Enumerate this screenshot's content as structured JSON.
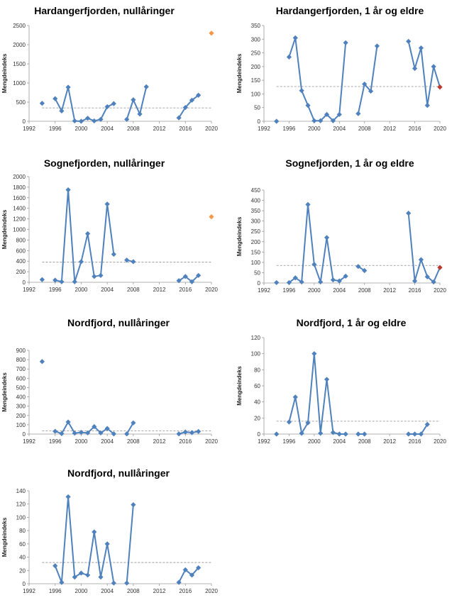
{
  "chart_data": [
    {
      "type": "line",
      "title": "Hardangerfjorden, nullåringer",
      "ylabel": "Mengdeindeks",
      "xlim": [
        1992,
        2020
      ],
      "ylim": [
        0,
        2500
      ],
      "xticks": [
        "1992",
        "1996",
        "2000",
        "2004",
        "2008",
        "2012",
        "2016",
        "2020"
      ],
      "yticks": [
        "0",
        "500",
        "1000",
        "1500",
        "2000",
        "2500"
      ],
      "reference_line": 350,
      "segments": [
        [
          [
            1994,
            470
          ]
        ],
        [
          [
            1996,
            590
          ],
          [
            1997,
            270
          ],
          [
            1998,
            890
          ],
          [
            1999,
            10
          ],
          [
            2000,
            0
          ],
          [
            2001,
            80
          ],
          [
            2002,
            10
          ],
          [
            2003,
            50
          ],
          [
            2004,
            380
          ],
          [
            2005,
            460
          ]
        ],
        [
          [
            2007,
            50
          ],
          [
            2008,
            560
          ],
          [
            2009,
            190
          ],
          [
            2010,
            900
          ]
        ],
        [
          [
            2015,
            90
          ],
          [
            2016,
            360
          ],
          [
            2017,
            550
          ],
          [
            2018,
            680
          ]
        ]
      ],
      "highlight": {
        "x": 2020,
        "y": 2300,
        "color": "#f79646"
      }
    },
    {
      "type": "line",
      "title": "Hardangerfjorden, 1 år og eldre",
      "ylabel": "Mengdeindeks",
      "xlim": [
        1992,
        2020
      ],
      "ylim": [
        0,
        350
      ],
      "xticks": [
        "1992",
        "1996",
        "2000",
        "2004",
        "2008",
        "2012",
        "2016",
        "2020"
      ],
      "yticks": [
        "0",
        "50",
        "100",
        "150",
        "200",
        "250",
        "300",
        "350"
      ],
      "reference_line": 127,
      "segments": [
        [
          [
            1994,
            0
          ]
        ],
        [
          [
            1996,
            235
          ],
          [
            1997,
            305
          ],
          [
            1998,
            112
          ],
          [
            1999,
            58
          ],
          [
            2000,
            2
          ],
          [
            2001,
            2
          ],
          [
            2002,
            25
          ],
          [
            2003,
            2
          ],
          [
            2004,
            25
          ],
          [
            2005,
            287
          ]
        ],
        [
          [
            2007,
            28
          ],
          [
            2008,
            136
          ],
          [
            2009,
            110
          ],
          [
            2010,
            275
          ]
        ],
        [
          [
            2015,
            292
          ],
          [
            2016,
            193
          ],
          [
            2017,
            268
          ],
          [
            2018,
            58
          ],
          [
            2019,
            200
          ],
          [
            2020,
            125
          ]
        ]
      ],
      "highlight": {
        "x": 2020,
        "y": 125,
        "color": "#c0392b"
      }
    },
    {
      "type": "line",
      "title": "Sognefjorden, nullåringer",
      "ylabel": "Mengdeindeks",
      "xlim": [
        1992,
        2020
      ],
      "ylim": [
        0,
        2000
      ],
      "xticks": [
        "1992",
        "1996",
        "2000",
        "2004",
        "2008",
        "2012",
        "2016",
        "2020"
      ],
      "yticks": [
        "0",
        "200",
        "400",
        "600",
        "800",
        "1000",
        "1200",
        "1400",
        "1600",
        "1800",
        "2000"
      ],
      "reference_line": 380,
      "segments": [
        [
          [
            1994,
            50
          ]
        ],
        [
          [
            1996,
            40
          ],
          [
            1997,
            10
          ],
          [
            1998,
            1750
          ],
          [
            1999,
            10
          ],
          [
            2000,
            390
          ],
          [
            2001,
            920
          ],
          [
            2002,
            110
          ],
          [
            2003,
            130
          ],
          [
            2004,
            1480
          ],
          [
            2005,
            530
          ]
        ],
        [
          [
            2007,
            420
          ],
          [
            2008,
            390
          ]
        ],
        [
          [
            2015,
            30
          ],
          [
            2016,
            110
          ],
          [
            2017,
            10
          ],
          [
            2018,
            130
          ]
        ]
      ],
      "highlight": {
        "x": 2020,
        "y": 1240,
        "color": "#f79646"
      }
    },
    {
      "type": "line",
      "title": "Sognefjorden, 1 år og eldre",
      "ylabel": "Mengdeindeks",
      "xlim": [
        1992,
        2020
      ],
      "ylim": [
        0,
        450
      ],
      "xticks": [
        "1992",
        "1996",
        "2000",
        "2004",
        "2008",
        "2012",
        "2016",
        "2020"
      ],
      "yticks": [
        "0",
        "50",
        "100",
        "150",
        "200",
        "250",
        "300",
        "350",
        "400",
        "450"
      ],
      "reference_line": 85,
      "segments": [
        [
          [
            1994,
            2
          ]
        ],
        [
          [
            1996,
            2
          ],
          [
            1997,
            25
          ],
          [
            1998,
            5
          ],
          [
            1999,
            380
          ],
          [
            2000,
            90
          ],
          [
            2001,
            5
          ],
          [
            2002,
            220
          ],
          [
            2003,
            15
          ],
          [
            2004,
            10
          ],
          [
            2005,
            33
          ]
        ],
        [
          [
            2007,
            80
          ],
          [
            2008,
            60
          ]
        ],
        [
          [
            2015,
            338
          ],
          [
            2016,
            10
          ],
          [
            2017,
            113
          ],
          [
            2018,
            30
          ],
          [
            2019,
            5
          ],
          [
            2020,
            75
          ]
        ]
      ],
      "highlight": {
        "x": 2020,
        "y": 75,
        "color": "#c0392b"
      }
    },
    {
      "type": "line",
      "title": "Nordfjord, nullåringer",
      "ylabel": "Mengdeindeks",
      "xlim": [
        1992,
        2020
      ],
      "ylim": [
        0,
        900
      ],
      "xticks": [
        "1992",
        "1996",
        "2000",
        "2004",
        "2008",
        "2012",
        "2016",
        "2020"
      ],
      "yticks": [
        "0",
        "100",
        "200",
        "300",
        "400",
        "500",
        "600",
        "700",
        "800",
        "900"
      ],
      "reference_line": 35,
      "segments": [
        [
          [
            1994,
            780
          ]
        ],
        [
          [
            1996,
            30
          ],
          [
            1997,
            5
          ],
          [
            1998,
            130
          ],
          [
            1999,
            10
          ],
          [
            2000,
            18
          ],
          [
            2001,
            12
          ],
          [
            2002,
            80
          ],
          [
            2003,
            12
          ],
          [
            2004,
            60
          ],
          [
            2005,
            2
          ]
        ],
        [
          [
            2007,
            2
          ],
          [
            2008,
            120
          ]
        ],
        [
          [
            2015,
            2
          ],
          [
            2016,
            22
          ],
          [
            2017,
            15
          ],
          [
            2018,
            28
          ]
        ]
      ]
    },
    {
      "type": "line",
      "title": "Nordfjord, 1 år og eldre",
      "ylabel": "Mengdeindeks",
      "xlim": [
        1992,
        2020
      ],
      "ylim": [
        0,
        120
      ],
      "xticks": [
        "1992",
        "1996",
        "2000",
        "2004",
        "2008",
        "2012",
        "2016",
        "2020"
      ],
      "yticks": [
        "0",
        "20",
        "40",
        "60",
        "80",
        "100",
        "120"
      ],
      "reference_line": 16,
      "segments": [
        [
          [
            1994,
            0
          ]
        ],
        [
          [
            1996,
            15
          ],
          [
            1997,
            46
          ],
          [
            1998,
            1
          ],
          [
            1999,
            14
          ],
          [
            2000,
            100
          ],
          [
            2001,
            1
          ],
          [
            2002,
            68
          ],
          [
            2003,
            2
          ],
          [
            2004,
            0
          ],
          [
            2005,
            0
          ]
        ],
        [
          [
            2007,
            0
          ],
          [
            2008,
            0
          ]
        ],
        [
          [
            2015,
            0
          ],
          [
            2016,
            0
          ],
          [
            2017,
            0
          ],
          [
            2018,
            12
          ]
        ]
      ]
    },
    {
      "type": "line",
      "title": "Nordfjord, nullåringer",
      "ylabel": "Mengdeindeks",
      "xlim": [
        1992,
        2020
      ],
      "ylim": [
        0,
        140
      ],
      "xticks": [
        "1992",
        "1996",
        "2000",
        "2004",
        "2008",
        "2012",
        "2016",
        "2020"
      ],
      "yticks": [
        "0",
        "20",
        "40",
        "60",
        "80",
        "100",
        "120",
        "140"
      ],
      "reference_line": 32,
      "segments": [
        [
          [
            1996,
            27
          ],
          [
            1997,
            2
          ],
          [
            1998,
            131
          ],
          [
            1999,
            10
          ],
          [
            2000,
            16
          ],
          [
            2001,
            13
          ],
          [
            2002,
            78
          ],
          [
            2003,
            10
          ],
          [
            2004,
            60
          ],
          [
            2005,
            1
          ]
        ],
        [
          [
            2007,
            1
          ],
          [
            2008,
            119
          ]
        ],
        [
          [
            2015,
            2
          ],
          [
            2016,
            21
          ],
          [
            2017,
            13
          ],
          [
            2018,
            24
          ]
        ]
      ]
    }
  ]
}
